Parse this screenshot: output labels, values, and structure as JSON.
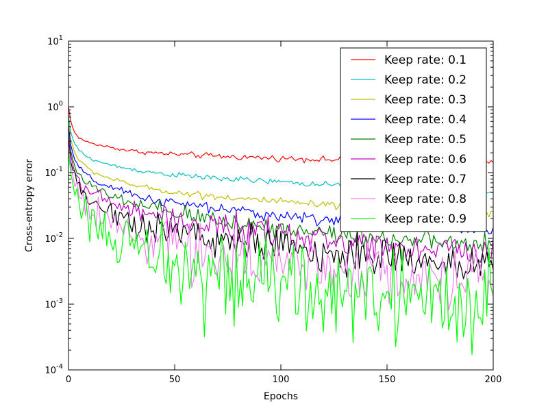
{
  "chart_data": {
    "type": "line",
    "title": "",
    "xlabel": "Epochs",
    "ylabel": "Cross-entropy error",
    "xlim": [
      0,
      200
    ],
    "ylim": [
      0.0001,
      10
    ],
    "yscale": "log",
    "grid": false,
    "legend_position": "top-right",
    "x_ticks": [
      0,
      50,
      100,
      150,
      200
    ],
    "y_ticks": [
      {
        "value": 0.0001,
        "base": "10",
        "exp": "-4"
      },
      {
        "value": 0.001,
        "base": "10",
        "exp": "-3"
      },
      {
        "value": 0.01,
        "base": "10",
        "exp": "-2"
      },
      {
        "value": 0.1,
        "base": "10",
        "exp": "-1"
      },
      {
        "value": 1,
        "base": "10",
        "exp": "0"
      },
      {
        "value": 10,
        "base": "10",
        "exp": "1"
      }
    ],
    "x": [
      0,
      1,
      2,
      3,
      5,
      8,
      12,
      18,
      25,
      35,
      50,
      75,
      100,
      125,
      150,
      175,
      200
    ],
    "series": [
      {
        "name": "Keep rate: 0.1",
        "color": "#ff0000",
        "noise": 0.02,
        "values": [
          1.0,
          0.62,
          0.48,
          0.4,
          0.34,
          0.3,
          0.27,
          0.25,
          0.225,
          0.205,
          0.19,
          0.175,
          0.165,
          0.157,
          0.15,
          0.145,
          0.14
        ]
      },
      {
        "name": "Keep rate: 0.2",
        "color": "#00bfbf",
        "noise": 0.02,
        "values": [
          0.75,
          0.42,
          0.33,
          0.27,
          0.22,
          0.18,
          0.155,
          0.135,
          0.12,
          0.105,
          0.092,
          0.08,
          0.072,
          0.064,
          0.058,
          0.053,
          0.049
        ]
      },
      {
        "name": "Keep rate: 0.3",
        "color": "#bfbf00",
        "noise": 0.025,
        "values": [
          0.6,
          0.33,
          0.25,
          0.2,
          0.155,
          0.125,
          0.1,
          0.085,
          0.072,
          0.06,
          0.05,
          0.042,
          0.036,
          0.031,
          0.028,
          0.025,
          0.023
        ]
      },
      {
        "name": "Keep rate: 0.4",
        "color": "#0000ff",
        "noise": 0.04,
        "values": [
          0.5,
          0.27,
          0.2,
          0.155,
          0.12,
          0.095,
          0.075,
          0.062,
          0.052,
          0.042,
          0.034,
          0.027,
          0.022,
          0.019,
          0.016,
          0.015,
          0.013
        ]
      },
      {
        "name": "Keep rate: 0.5",
        "color": "#008000",
        "noise": 0.07,
        "values": [
          0.42,
          0.22,
          0.16,
          0.125,
          0.095,
          0.074,
          0.058,
          0.046,
          0.038,
          0.03,
          0.024,
          0.018,
          0.014,
          0.012,
          0.01,
          0.0085,
          0.0075
        ]
      },
      {
        "name": "Keep rate: 0.6",
        "color": "#bf00bf",
        "noise": 0.1,
        "values": [
          0.36,
          0.19,
          0.135,
          0.1,
          0.078,
          0.06,
          0.046,
          0.037,
          0.03,
          0.024,
          0.019,
          0.014,
          0.011,
          0.009,
          0.008,
          0.0068,
          0.006
        ]
      },
      {
        "name": "Keep rate: 0.7",
        "color": "#000000",
        "noise": 0.14,
        "values": [
          0.3,
          0.15,
          0.11,
          0.082,
          0.062,
          0.047,
          0.035,
          0.027,
          0.021,
          0.016,
          0.0125,
          0.009,
          0.0072,
          0.006,
          0.005,
          0.0045,
          0.004
        ]
      },
      {
        "name": "Keep rate: 0.8",
        "color": "#ee82ee",
        "noise": 0.2,
        "values": [
          0.26,
          0.13,
          0.09,
          0.065,
          0.048,
          0.035,
          0.025,
          0.018,
          0.0135,
          0.01,
          0.0075,
          0.0055,
          0.0045,
          0.0035,
          0.003,
          0.0025,
          0.0022
        ]
      },
      {
        "name": "Keep rate: 0.9",
        "color": "#00ff00",
        "noise": 0.32,
        "values": [
          0.22,
          0.1,
          0.07,
          0.05,
          0.036,
          0.025,
          0.017,
          0.012,
          0.008,
          0.0055,
          0.0035,
          0.0022,
          0.0018,
          0.0014,
          0.0012,
          0.0011,
          0.001
        ]
      }
    ]
  }
}
